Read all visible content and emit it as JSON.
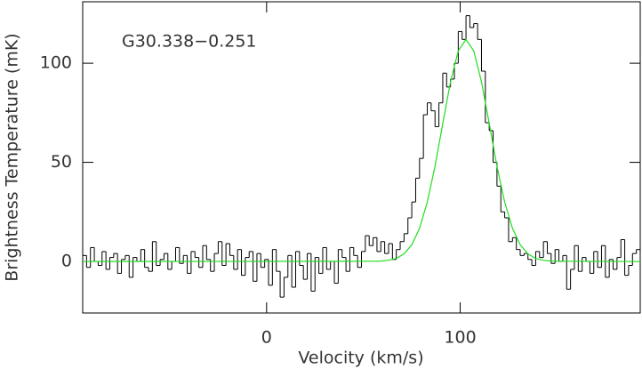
{
  "chart_data": {
    "type": "line",
    "annotation": "G30.338−0.251",
    "xlabel": "Velocity (km/s)",
    "ylabel": "Brightness Temperature (mK)",
    "xlim": [
      -95,
      193
    ],
    "ylim": [
      -26,
      131
    ],
    "xticks": [
      0,
      100
    ],
    "yticks": [
      0,
      50,
      100
    ],
    "series": [
      {
        "name": "spectrum",
        "style": "step",
        "color": "#000000",
        "x": [
          -94,
          -92,
          -90,
          -88,
          -86,
          -84,
          -82,
          -80,
          -78,
          -76,
          -74,
          -72,
          -70,
          -68,
          -66,
          -64,
          -62,
          -60,
          -58,
          -56,
          -54,
          -52,
          -50,
          -48,
          -46,
          -44,
          -42,
          -40,
          -38,
          -36,
          -34,
          -32,
          -30,
          -28,
          -26,
          -24,
          -22,
          -20,
          -18,
          -16,
          -14,
          -12,
          -10,
          -8,
          -6,
          -4,
          -2,
          0,
          2,
          4,
          6,
          8,
          10,
          12,
          14,
          16,
          18,
          20,
          22,
          24,
          26,
          28,
          30,
          32,
          34,
          36,
          38,
          40,
          42,
          44,
          46,
          48,
          50,
          52,
          54,
          56,
          58,
          60,
          62,
          64,
          66,
          68,
          70,
          72,
          74,
          76,
          78,
          80,
          82,
          84,
          86,
          88,
          90,
          92,
          94,
          96,
          98,
          100,
          102,
          104,
          106,
          108,
          110,
          112,
          114,
          116,
          118,
          120,
          122,
          124,
          126,
          128,
          130,
          132,
          134,
          136,
          138,
          140,
          142,
          144,
          146,
          148,
          150,
          152,
          154,
          156,
          158,
          160,
          162,
          164,
          166,
          168,
          170,
          172,
          174,
          176,
          178,
          180,
          182,
          184,
          186,
          188,
          190,
          192
        ],
        "values": [
          3,
          -3,
          7,
          0,
          -2,
          5,
          -4,
          2,
          4,
          -6,
          1,
          3,
          -8,
          2,
          0,
          6,
          -3,
          -5,
          10,
          -2,
          1,
          4,
          -4,
          0,
          7,
          -1,
          3,
          -6,
          5,
          2,
          -3,
          8,
          1,
          -5,
          4,
          10,
          -2,
          9,
          3,
          -4,
          6,
          -7,
          2,
          5,
          -10,
          4,
          -3,
          1,
          -12,
          6,
          -5,
          -18,
          -8,
          3,
          -13,
          5,
          -2,
          -9,
          4,
          -15,
          2,
          -6,
          7,
          -4,
          0,
          -11,
          6,
          2,
          -5,
          7,
          3,
          -3,
          5,
          13,
          8,
          12,
          5,
          10,
          4,
          9,
          1,
          6,
          10,
          14,
          22,
          30,
          42,
          52,
          74,
          80,
          76,
          68,
          80,
          95,
          88,
          92,
          100,
          116,
          112,
          124,
          118,
          120,
          112,
          96,
          70,
          66,
          50,
          38,
          25,
          22,
          10,
          12,
          6,
          3,
          4,
          1,
          -2,
          5,
          2,
          10,
          4,
          -1,
          6,
          0,
          3,
          -14,
          -4,
          8,
          -5,
          2,
          0,
          -6,
          5,
          -3,
          8,
          -8,
          1,
          -4,
          2,
          11,
          -7,
          -2,
          4,
          6
        ]
      },
      {
        "name": "fit",
        "style": "line",
        "color": "#22dd22",
        "x": [
          -95,
          55,
          59,
          63,
          67,
          71,
          75,
          79,
          83,
          87,
          91,
          95,
          99,
          103,
          107,
          111,
          115,
          119,
          123,
          127,
          131,
          135,
          139,
          143,
          147,
          151,
          193
        ],
        "values": [
          0,
          0.1,
          0.2,
          0.6,
          1.5,
          3.8,
          8.4,
          16.7,
          29.9,
          48.0,
          69.6,
          90.6,
          106.2,
          112,
          106.2,
          90.6,
          69.6,
          48.0,
          29.9,
          16.7,
          8.4,
          3.8,
          1.5,
          0.6,
          0.2,
          0.1,
          0
        ]
      }
    ]
  }
}
